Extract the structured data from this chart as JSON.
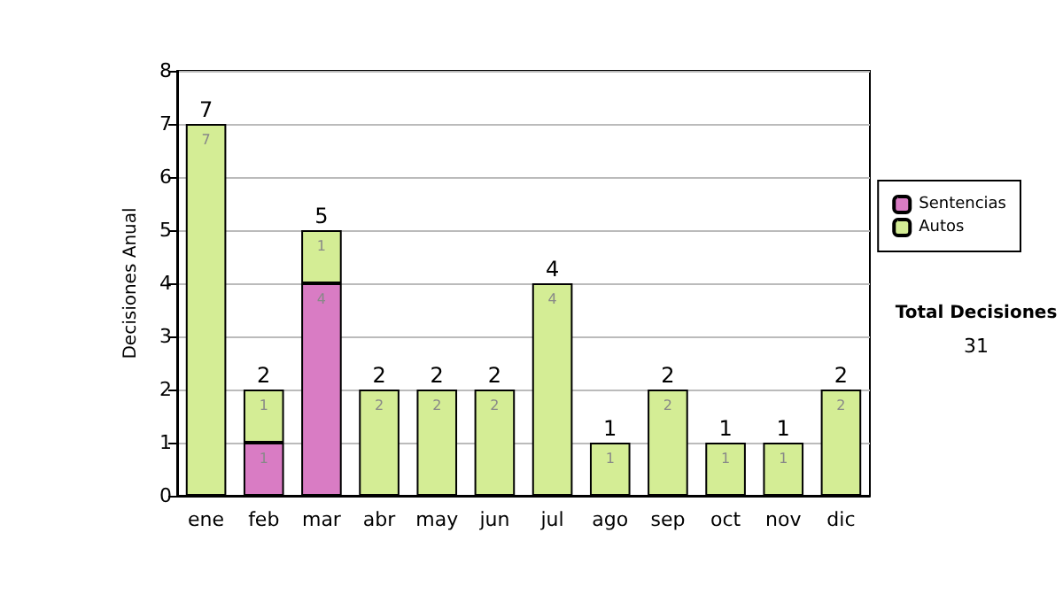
{
  "chart_data": {
    "type": "bar",
    "stacked": true,
    "ylabel": "Decisiones Anual",
    "categories": [
      "ene",
      "feb",
      "mar",
      "abr",
      "may",
      "jun",
      "jul",
      "ago",
      "sep",
      "oct",
      "nov",
      "dic"
    ],
    "series": [
      {
        "name": "Sentencias",
        "color": "#d97cc4",
        "values": [
          0,
          1,
          4,
          0,
          0,
          0,
          0,
          0,
          0,
          0,
          0,
          0
        ],
        "value_labels": [
          null,
          "1",
          "4",
          null,
          null,
          null,
          null,
          null,
          null,
          null,
          null,
          null
        ]
      },
      {
        "name": "Autos",
        "color": "#d4ed95",
        "values": [
          7,
          1,
          1,
          2,
          2,
          2,
          4,
          1,
          2,
          1,
          1,
          2
        ],
        "value_labels": [
          "7",
          "1",
          "1",
          "2",
          "2",
          "2",
          "4",
          "1",
          "2",
          "1",
          "1",
          "2"
        ]
      }
    ],
    "totals": [
      "7",
      "2",
      "5",
      "2",
      "2",
      "2",
      "4",
      "1",
      "2",
      "1",
      "1",
      "2"
    ],
    "ylim": [
      0,
      8
    ],
    "yticks": [
      0,
      1,
      2,
      3,
      4,
      5,
      6,
      7,
      8
    ],
    "grid": "y",
    "legend": "right",
    "annotations": [
      "Total Decisiones",
      "31"
    ]
  }
}
